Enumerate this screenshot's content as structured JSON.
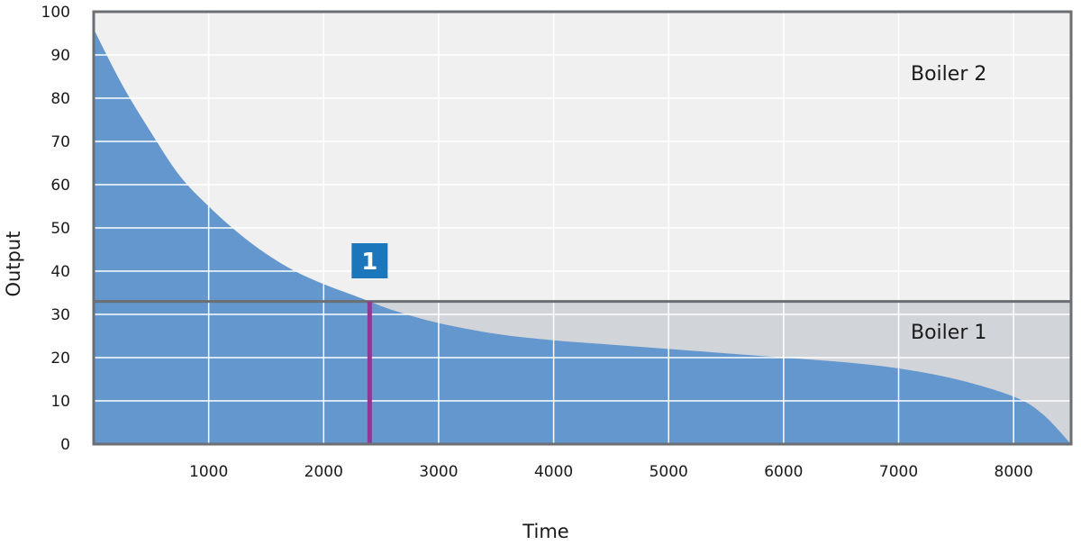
{
  "chart_data": {
    "type": "area",
    "xlabel": "Time",
    "ylabel": "Output",
    "xlim": [
      0,
      8500
    ],
    "ylim": [
      0,
      100
    ],
    "x_ticks": [
      1000,
      2000,
      3000,
      4000,
      5000,
      6000,
      7000,
      8000
    ],
    "y_ticks": [
      0,
      10,
      20,
      30,
      40,
      50,
      60,
      70,
      80,
      90,
      100
    ],
    "grid": true,
    "series": [
      {
        "x": [
          0,
          250,
          500,
          750,
          1000,
          1250,
          1500,
          1750,
          2000,
          2250,
          2400,
          2600,
          3000,
          3500,
          4000,
          4500,
          5000,
          5500,
          6000,
          6500,
          7000,
          7500,
          8000,
          8250,
          8500
        ],
        "values": [
          96,
          83,
          72,
          62,
          55,
          49,
          44,
          40,
          37,
          34.5,
          33,
          31,
          28,
          25.5,
          24,
          23,
          22,
          21,
          20,
          19,
          17.5,
          15,
          11,
          7,
          0
        ],
        "color": "#6397cd"
      }
    ],
    "threshold": {
      "y": 33
    },
    "regions": [
      {
        "label": "Boiler 2",
        "color": "#f0f0f0"
      },
      {
        "label": "Boiler 1",
        "color": "#d1d5d9"
      }
    ],
    "marker": {
      "x": 2400,
      "label": "1",
      "line_color": "#8e3a94",
      "box_color": "#1b76bb"
    },
    "frame_color": "#6b6e72"
  }
}
